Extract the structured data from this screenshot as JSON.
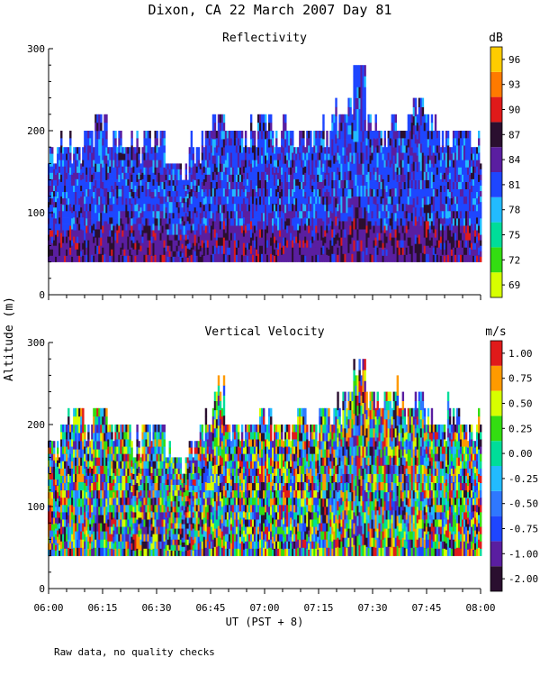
{
  "page": {
    "title": "Dixon, CA 22 March 2007  Day  81",
    "shared_ylabel": "Altitude (m)",
    "xlabel": "UT  (PST + 8)",
    "footnote": "Raw data, no quality checks"
  },
  "chart_data": [
    {
      "type": "heatmap",
      "title": "Reflectivity",
      "xlabel": "UT  (PST + 8)",
      "ylabel": "Altitude (m)",
      "x_ticks": [
        "06:00",
        "06:15",
        "06:30",
        "06:45",
        "07:00",
        "07:15",
        "07:30",
        "07:45",
        "08:00"
      ],
      "y_ticks": [
        0,
        100,
        200,
        300
      ],
      "ylim": [
        0,
        300
      ],
      "xlim_minutes": [
        0,
        120
      ],
      "data_bottom_m": 40,
      "column_top_m": [
        180,
        200,
        180,
        200,
        220,
        200,
        200,
        180,
        200,
        200,
        160,
        160,
        180,
        200,
        220,
        200,
        200,
        200,
        220,
        200,
        200,
        200,
        200,
        200,
        220,
        220,
        280,
        220,
        200,
        220,
        220,
        240,
        220,
        200,
        200,
        200,
        180
      ],
      "colorbar": {
        "unit": "dB",
        "levels": [
          "69",
          "72",
          "75",
          "78",
          "81",
          "84",
          "87",
          "90",
          "93",
          "96"
        ],
        "colors": [
          "#d7ff00",
          "#33dd11",
          "#00dd99",
          "#22bbff",
          "#1e46ff",
          "#5a1ea0",
          "#2a0f2f",
          "#e01a1a",
          "#ff7a00",
          "#ffcc00"
        ]
      }
    },
    {
      "type": "heatmap",
      "title": "Vertical Velocity",
      "xlabel": "UT  (PST + 8)",
      "ylabel": "Altitude (m)",
      "x_ticks": [
        "06:00",
        "06:15",
        "06:30",
        "06:45",
        "07:00",
        "07:15",
        "07:30",
        "07:45",
        "08:00"
      ],
      "y_ticks": [
        0,
        100,
        200,
        300
      ],
      "ylim": [
        0,
        300
      ],
      "xlim_minutes": [
        0,
        120
      ],
      "data_bottom_m": 40,
      "column_top_m": [
        180,
        200,
        220,
        200,
        220,
        200,
        200,
        180,
        200,
        200,
        160,
        160,
        180,
        200,
        240,
        200,
        200,
        200,
        220,
        200,
        200,
        220,
        200,
        220,
        220,
        240,
        280,
        240,
        240,
        240,
        220,
        240,
        220,
        200,
        220,
        200,
        200
      ],
      "colorbar": {
        "unit": "m/s",
        "levels": [
          "-2.00",
          "-1.00",
          "-0.75",
          "-0.50",
          "-0.25",
          "0.00",
          "0.25",
          "0.50",
          "0.75",
          "1.00"
        ],
        "colors": [
          "#2a0f2f",
          "#5a1ea0",
          "#1e46ff",
          "#2f78ff",
          "#22bbff",
          "#00dd99",
          "#33dd11",
          "#d7ff00",
          "#ff9a00",
          "#e01a1a"
        ]
      }
    }
  ]
}
